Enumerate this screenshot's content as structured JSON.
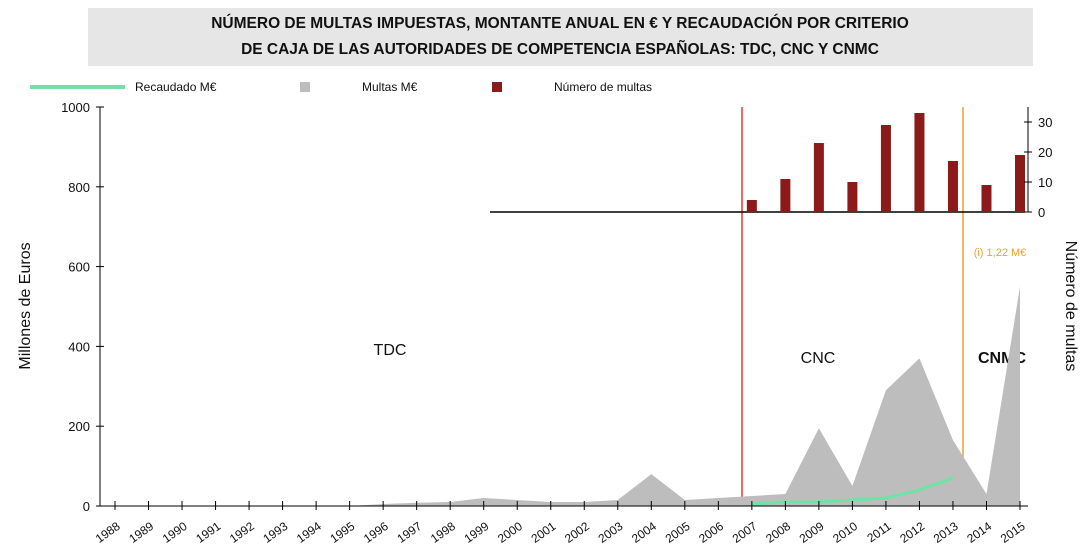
{
  "chart_data": {
    "type": "combo",
    "title": [
      "NÚMERO DE MULTAS IMPUESTAS, MONTANTE ANUAL EN € Y RECAUDACIÓN POR CRITERIO",
      "DE CAJA DE LAS AUTORIDADES DE COMPETENCIA ESPAÑOLAS: TDC, CNC Y CNMC"
    ],
    "y_label": "Millones de Euros",
    "y2_label": "Número de multas",
    "categories": [
      "1988",
      "1989",
      "1990",
      "1991",
      "1992",
      "1993",
      "1994",
      "1995",
      "1996",
      "1997",
      "1998",
      "1999",
      "2000",
      "2001",
      "2002",
      "2003",
      "2004",
      "2005",
      "2006",
      "2007",
      "2008",
      "2009",
      "2010",
      "2011",
      "2012",
      "2013",
      "2014",
      "2015"
    ],
    "series": [
      {
        "name": "Recaudado M€",
        "type": "line",
        "color": "#6fe3a6",
        "values": [
          null,
          null,
          null,
          null,
          null,
          null,
          null,
          null,
          null,
          null,
          null,
          null,
          null,
          null,
          null,
          null,
          null,
          null,
          null,
          5,
          10,
          10,
          15,
          20,
          40,
          70,
          null,
          null
        ]
      },
      {
        "name": "Multas M€",
        "type": "area",
        "color": "#bdbdbd",
        "values": [
          0,
          0,
          0,
          0,
          0,
          0,
          0,
          0,
          5,
          8,
          10,
          20,
          15,
          10,
          10,
          15,
          80,
          15,
          20,
          25,
          30,
          195,
          50,
          290,
          370,
          165,
          30,
          550
        ]
      },
      {
        "name": "Número de multas",
        "type": "bar",
        "axis": "y2",
        "color": "#8b1a1a",
        "values": [
          null,
          null,
          null,
          null,
          null,
          null,
          null,
          null,
          null,
          null,
          null,
          null,
          null,
          null,
          null,
          null,
          null,
          null,
          null,
          4,
          11,
          23,
          10,
          29,
          33,
          17,
          9,
          19
        ]
      }
    ],
    "ylim": [
      0,
      1000
    ],
    "yticks": [
      0,
      200,
      400,
      600,
      800,
      1000
    ],
    "y2lim": [
      0,
      35
    ],
    "y2ticks": [
      0,
      10,
      20,
      30
    ],
    "annotations": [
      "TDC",
      "CNC",
      "CNMC",
      "(i) 1,22 M€"
    ]
  }
}
